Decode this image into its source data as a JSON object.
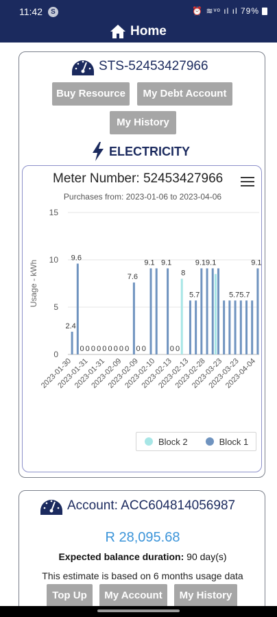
{
  "status_bar": {
    "time": "11:42",
    "notification_badge": "S",
    "system_icons": "⏰ ≋ᵛᵒ ıl ıl",
    "battery_text": "79%"
  },
  "appbar": {
    "title": "Home",
    "icon": "home-icon"
  },
  "meter_card": {
    "title": "STS-52453427966",
    "icon": "gauge-icon",
    "buttons": {
      "buy_resource": "Buy Resource",
      "my_debt_account": "My Debt Account",
      "my_history": "My History"
    },
    "resource_label": "ELECTRICITY",
    "resource_icon": "lightning-icon"
  },
  "chart_header": {
    "meter_number": "Meter Number: 52453427966",
    "purchases": "Purchases from: 2023-01-06 to 2023-04-06",
    "menu_icon": "hamburger-menu-icon"
  },
  "chart_data": {
    "type": "bar",
    "ylabel": "Usage - kWh",
    "ylim": [
      0,
      15
    ],
    "yticks": [
      0,
      5,
      10,
      15
    ],
    "x_tick_labels": [
      "2023-01-30",
      "2023-01-31",
      "2023-01-31",
      "2023-02-09",
      "2023-02-09",
      "2023-02-10",
      "2023-02-13",
      "2023-02-13",
      "2023-02-28",
      "2023-03-23",
      "2023-03-23",
      "2023-04-04"
    ],
    "series": [
      {
        "name": "Block 1",
        "color": "#6f93bf",
        "values": [
          2.4,
          9.6,
          0,
          0,
          0,
          0,
          0,
          0,
          0,
          0,
          0,
          7.6,
          0,
          0,
          9.1,
          9.1,
          0,
          9.1,
          0,
          0,
          0,
          5.7,
          5.7,
          9.1,
          9.1,
          9.1,
          9.1,
          5.7,
          5.7,
          5.7,
          5.7,
          5.7,
          5.7,
          9.1
        ]
      },
      {
        "name": "Block 2",
        "color": "#a7e6e6",
        "values": [
          0,
          0,
          0,
          0,
          0,
          0,
          0,
          0,
          0,
          0,
          0,
          0,
          0,
          0,
          0,
          0,
          0,
          0,
          0,
          0,
          8,
          0,
          0,
          0,
          0,
          0,
          8.5,
          0,
          0,
          0,
          0,
          0,
          0,
          0
        ]
      }
    ],
    "data_labels": [
      {
        "i": 0,
        "text": "2.4"
      },
      {
        "i": 1,
        "text": "9.6"
      },
      {
        "i": 2,
        "text": "0"
      },
      {
        "i": 3,
        "text": "0"
      },
      {
        "i": 4,
        "text": "0"
      },
      {
        "i": 5,
        "text": "0"
      },
      {
        "i": 6,
        "text": "0"
      },
      {
        "i": 7,
        "text": "0"
      },
      {
        "i": 8,
        "text": "0"
      },
      {
        "i": 9,
        "text": "0"
      },
      {
        "i": 10,
        "text": "0"
      },
      {
        "i": 11,
        "text": "7.6"
      },
      {
        "i": 12,
        "text": "0"
      },
      {
        "i": 13,
        "text": "0"
      },
      {
        "i": 14,
        "text": "9.1"
      },
      {
        "i": 17,
        "text": "9.1"
      },
      {
        "i": 18,
        "text": "0"
      },
      {
        "i": 19,
        "text": "0"
      },
      {
        "i": 20,
        "text": "8"
      },
      {
        "i": 22,
        "text": "5.7"
      },
      {
        "i": 24,
        "text": "9.19.1"
      },
      {
        "i": 30,
        "text": "5.75.7"
      },
      {
        "i": 33,
        "text": "9.1"
      }
    ],
    "legend": [
      "Block 2",
      "Block 1"
    ],
    "legend_position": "bottom-right"
  },
  "account_card": {
    "title": "Account: ACC604814056987",
    "icon": "gauge-icon",
    "balance": "R 28,095.68",
    "duration_label": "Expected balance duration:",
    "duration_value": "90 day(s)",
    "estimate_note": "This estimate is based on 6 months usage data",
    "buttons": {
      "top_up": "Top Up",
      "my_account": "My Account",
      "my_history": "My History"
    }
  }
}
